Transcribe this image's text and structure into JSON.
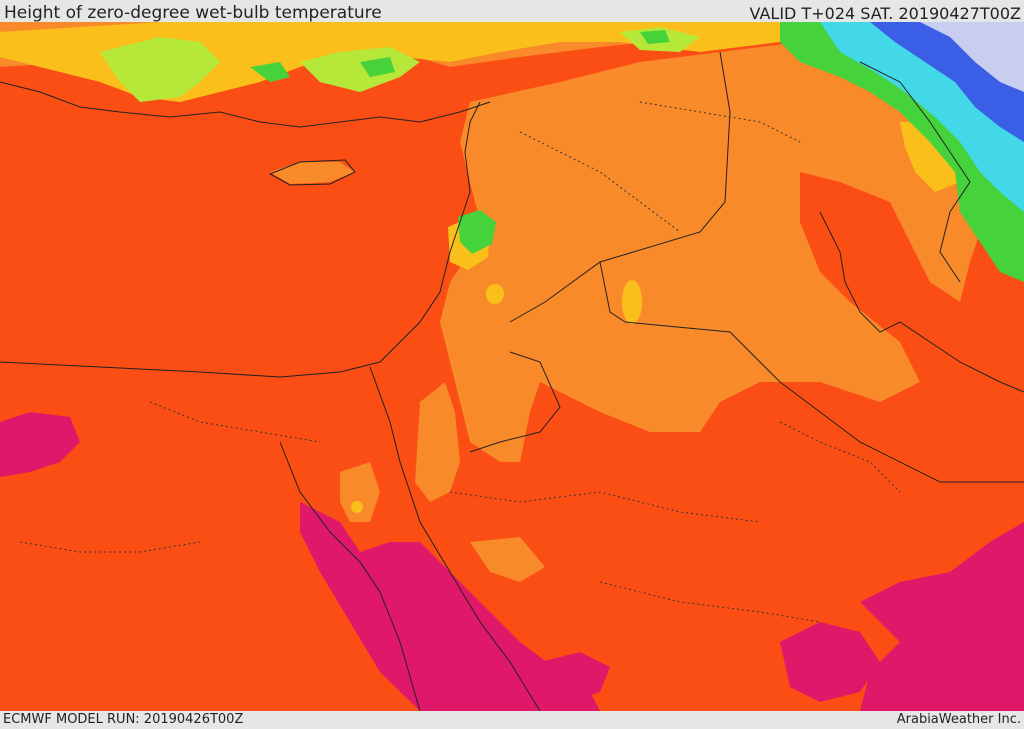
{
  "header": {
    "title": "Height of zero-degree wet-bulb temperature",
    "valid_time": "VALID T+024 SAT. 20190427T00Z"
  },
  "footer": {
    "model_run": "ECMWF MODEL RUN: 20190426T00Z",
    "credit": "ArabiaWeather Inc."
  },
  "map": {
    "field": "zero-degree wet-bulb height",
    "colors": {
      "orange_red": "#fa4e14",
      "orange": "#f98a2a",
      "amber": "#fbbf1c",
      "yellow": "#fff23a",
      "light_green": "#b6e83a",
      "green": "#46d23a",
      "cyan": "#42d8e8",
      "blue": "#3a5ee6",
      "lavender": "#c9cdf0",
      "magenta": "#e0186a"
    }
  }
}
